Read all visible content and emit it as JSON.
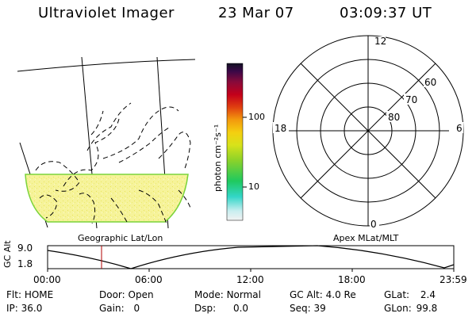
{
  "header": {
    "instrument": "Ultraviolet Imager",
    "date": "23 Mar 07",
    "time": "03:09:37 UT"
  },
  "colorbar": {
    "unit_label": "photon cm⁻²s⁻¹",
    "ticks": [
      "100",
      "10"
    ]
  },
  "geo_panel": {
    "caption": "Geographic Lat/Lon"
  },
  "polar_panel": {
    "caption": "Apex MLat/MLT",
    "mlt_labels": [
      "12",
      "18",
      "6",
      "0"
    ],
    "lat_labels": [
      "60",
      "70",
      "80"
    ]
  },
  "altitude_plot": {
    "axis_title": "GC Alt",
    "y_ticks": [
      "9.0",
      "1.8"
    ],
    "x_ticks": [
      "00:00",
      "06:00",
      "12:00",
      "18:00",
      "23:59"
    ]
  },
  "status": {
    "row1": [
      {
        "label": "Flt:",
        "value": "HOME"
      },
      {
        "label": "Door:",
        "value": "Open"
      },
      {
        "label": "Mode:",
        "value": "Normal"
      },
      {
        "label": "GC Alt:",
        "value": "4.0 Re"
      },
      {
        "label": "GLat:",
        "value": "2.4"
      }
    ],
    "row2": [
      {
        "label": "IP:",
        "value": "36.0"
      },
      {
        "label": "Gain:",
        "value": "0"
      },
      {
        "label": "Dsp:",
        "value": "0.0"
      },
      {
        "label": "Seq:",
        "value": "39"
      },
      {
        "label": "GLon:",
        "value": "99.8"
      }
    ]
  },
  "colors": {
    "marker": "#b00000",
    "image_fill": "#f3f08a",
    "image_edge": "#7ad33a"
  }
}
